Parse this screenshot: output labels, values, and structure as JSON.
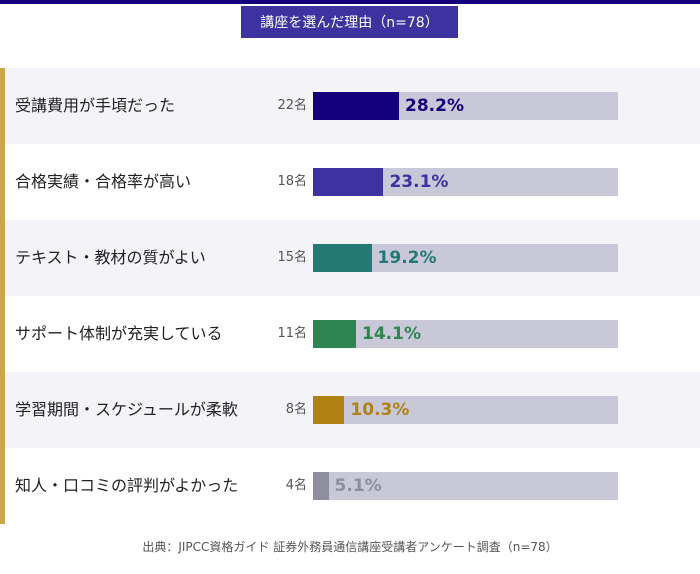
{
  "chart_data": {
    "type": "bar",
    "title": "講座を選んだ理由（n=78）",
    "categories": [
      "受講費用が手頃だった",
      "合格実績・合格率が高い",
      "テキスト・教材の質がよい",
      "サポート体制が充実している",
      "学習期間・スケジュールが柔軟",
      "知人・口コミの評判がよかった"
    ],
    "counts": [
      "22名",
      "18名",
      "15名",
      "11名",
      "8名",
      "4名"
    ],
    "values": [
      28.2,
      23.1,
      19.2,
      14.1,
      10.3,
      5.1
    ],
    "value_labels": [
      "28.2%",
      "23.1%",
      "19.2%",
      "14.1%",
      "10.3%",
      "5.1%"
    ],
    "colors": [
      "#14007a",
      "#3d33a0",
      "#237a74",
      "#2e8550",
      "#b08214",
      "#8e8ea0"
    ],
    "xlim": [
      0,
      100
    ],
    "xlabel": "",
    "ylabel": ""
  },
  "source": "出典：JIPCC資格ガイド 証券外務員通信講座受講者アンケート調査（n=78）"
}
